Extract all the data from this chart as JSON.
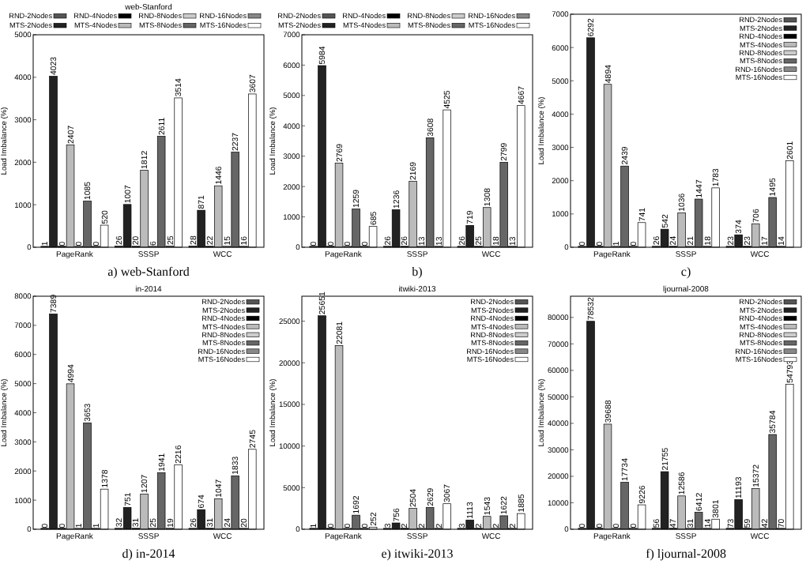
{
  "chart_data": [
    {
      "type": "bar",
      "title": "web-Stanford",
      "ylabel": "Load Imbalance (%)",
      "annotations": [
        "a) web-Stanford"
      ],
      "categories": [
        "PageRank",
        "SSSP",
        "WCC"
      ],
      "ylim": [
        0,
        5000
      ],
      "yticks": [
        0,
        1000,
        2000,
        3000,
        4000,
        5000
      ],
      "legend": "top",
      "data_labels": true,
      "series": [
        {
          "name": "RND-2Nodes",
          "color": "#555555",
          "values": [
            1,
            26,
            28
          ]
        },
        {
          "name": "MTS-2Nodes",
          "color": "#222222",
          "values": [
            4023,
            1007,
            871
          ]
        },
        {
          "name": "RND-4Nodes",
          "color": "#000000",
          "values": [
            0,
            20,
            22
          ]
        },
        {
          "name": "MTS-4Nodes",
          "color": "#bbbbbb",
          "values": [
            2407,
            1812,
            1446
          ]
        },
        {
          "name": "RND-8Nodes",
          "color": "#cccccc",
          "values": [
            0,
            6,
            15
          ]
        },
        {
          "name": "MTS-8Nodes",
          "color": "#666666",
          "values": [
            1085,
            2611,
            2237
          ]
        },
        {
          "name": "RND-16Nodes",
          "color": "#888888",
          "values": [
            0,
            25,
            16
          ]
        },
        {
          "name": "MTS-16Nodes",
          "color": "#ffffff",
          "values": [
            520,
            3514,
            3607
          ]
        }
      ]
    },
    {
      "type": "bar",
      "ylabel": "Load Imbalance (%)",
      "annotations": [
        "b)"
      ],
      "categories": [
        "PageRank",
        "SSSP",
        "WCC"
      ],
      "ylim": [
        0,
        7000
      ],
      "yticks": [
        0,
        1000,
        2000,
        3000,
        4000,
        5000,
        6000,
        7000
      ],
      "legend": "top",
      "data_labels": true,
      "series": [
        {
          "name": "RND-2Nodes",
          "color": "#555555",
          "values": [
            0,
            26,
            26
          ]
        },
        {
          "name": "MTS-2Nodes",
          "color": "#222222",
          "values": [
            5984,
            1236,
            719
          ]
        },
        {
          "name": "RND-4Nodes",
          "color": "#000000",
          "values": [
            0,
            26,
            25
          ]
        },
        {
          "name": "MTS-4Nodes",
          "color": "#bbbbbb",
          "values": [
            2769,
            2169,
            1308
          ]
        },
        {
          "name": "RND-8Nodes",
          "color": "#cccccc",
          "values": [
            0,
            13,
            18
          ]
        },
        {
          "name": "MTS-8Nodes",
          "color": "#666666",
          "values": [
            1259,
            3608,
            2799
          ]
        },
        {
          "name": "RND-16Nodes",
          "color": "#888888",
          "values": [
            0,
            13,
            13
          ]
        },
        {
          "name": "MTS-16Nodes",
          "color": "#ffffff",
          "values": [
            685,
            4525,
            4667
          ]
        }
      ]
    },
    {
      "type": "bar",
      "ylabel": "Load Imbalance (%)",
      "annotations": [
        "c)"
      ],
      "categories": [
        "PageRank",
        "SSSP",
        "WCC"
      ],
      "ylim": [
        0,
        7000
      ],
      "yticks": [
        0,
        1000,
        2000,
        3000,
        4000,
        5000,
        6000,
        7000
      ],
      "legend": "top right",
      "data_labels": true,
      "series": [
        {
          "name": "RND-2Nodes",
          "color": "#555555",
          "values": [
            0,
            26,
            23
          ]
        },
        {
          "name": "MTS-2Nodes",
          "color": "#222222",
          "values": [
            6292,
            542,
            374
          ]
        },
        {
          "name": "RND-4Nodes",
          "color": "#000000",
          "values": [
            0,
            24,
            23
          ]
        },
        {
          "name": "MTS-4Nodes",
          "color": "#bbbbbb",
          "values": [
            4894,
            1036,
            706
          ]
        },
        {
          "name": "RND-8Nodes",
          "color": "#cccccc",
          "values": [
            1,
            21,
            17
          ]
        },
        {
          "name": "MTS-8Nodes",
          "color": "#666666",
          "values": [
            2439,
            1447,
            1495
          ]
        },
        {
          "name": "RND-16Nodes",
          "color": "#888888",
          "values": [
            0,
            18,
            14
          ]
        },
        {
          "name": "MTS-16Nodes",
          "color": "#ffffff",
          "values": [
            741,
            1783,
            2601
          ]
        }
      ]
    },
    {
      "type": "bar",
      "title": "in-2014",
      "ylabel": "Load Imbalance (%)",
      "annotations": [
        "d) in-2014"
      ],
      "categories": [
        "PageRank",
        "SSSP",
        "WCC"
      ],
      "ylim": [
        0,
        8000
      ],
      "yticks": [
        0,
        1000,
        2000,
        3000,
        4000,
        5000,
        6000,
        7000,
        8000
      ],
      "legend": "top right",
      "data_labels": true,
      "series": [
        {
          "name": "RND-2Nodes",
          "color": "#555555",
          "values": [
            0,
            32,
            26
          ]
        },
        {
          "name": "MTS-2Nodes",
          "color": "#222222",
          "values": [
            7389,
            751,
            674
          ]
        },
        {
          "name": "RND-4Nodes",
          "color": "#000000",
          "values": [
            0,
            31,
            31
          ]
        },
        {
          "name": "MTS-4Nodes",
          "color": "#bbbbbb",
          "values": [
            4994,
            1207,
            1047
          ]
        },
        {
          "name": "RND-8Nodes",
          "color": "#cccccc",
          "values": [
            1,
            25,
            24
          ]
        },
        {
          "name": "MTS-8Nodes",
          "color": "#666666",
          "values": [
            3653,
            1941,
            1833
          ]
        },
        {
          "name": "RND-16Nodes",
          "color": "#888888",
          "values": [
            1,
            19,
            20
          ]
        },
        {
          "name": "MTS-16Nodes",
          "color": "#ffffff",
          "values": [
            1378,
            2216,
            2745
          ]
        }
      ]
    },
    {
      "type": "bar",
      "title": "itwiki-2013",
      "ylabel": "Load Imbalance (%)",
      "annotations": [
        "e) itwiki-2013"
      ],
      "categories": [
        "PageRank",
        "SSSP",
        "WCC"
      ],
      "ylim": [
        0,
        28000
      ],
      "yticks": [
        0,
        5000,
        10000,
        15000,
        20000,
        25000
      ],
      "legend": "top right",
      "data_labels": true,
      "series": [
        {
          "name": "RND-2Nodes",
          "color": "#555555",
          "values": [
            1,
            3,
            3
          ]
        },
        {
          "name": "MTS-2Nodes",
          "color": "#222222",
          "values": [
            25651,
            756,
            1113
          ]
        },
        {
          "name": "RND-4Nodes",
          "color": "#000000",
          "values": [
            0,
            2,
            2
          ]
        },
        {
          "name": "MTS-4Nodes",
          "color": "#bbbbbb",
          "values": [
            22081,
            2504,
            1543
          ]
        },
        {
          "name": "RND-8Nodes",
          "color": "#cccccc",
          "values": [
            0,
            2,
            2
          ]
        },
        {
          "name": "MTS-8Nodes",
          "color": "#666666",
          "values": [
            1692,
            2629,
            1622
          ]
        },
        {
          "name": "RND-16Nodes",
          "color": "#888888",
          "values": [
            0,
            2,
            2
          ]
        },
        {
          "name": "MTS-16Nodes",
          "color": "#ffffff",
          "values": [
            252,
            3067,
            1885
          ]
        }
      ]
    },
    {
      "type": "bar",
      "title": "ljournal-2008",
      "ylabel": "Load Imbalance (%)",
      "annotations": [
        "f) ljournal-2008"
      ],
      "categories": [
        "PageRank",
        "SSSP",
        "WCC"
      ],
      "ylim": [
        0,
        88000
      ],
      "yticks": [
        0,
        10000,
        20000,
        30000,
        40000,
        50000,
        60000,
        70000,
        80000
      ],
      "legend": "top right",
      "data_labels": true,
      "series": [
        {
          "name": "RND-2Nodes",
          "color": "#555555",
          "values": [
            0,
            56,
            73
          ]
        },
        {
          "name": "MTS-2Nodes",
          "color": "#222222",
          "values": [
            78532,
            21755,
            11193
          ]
        },
        {
          "name": "RND-4Nodes",
          "color": "#000000",
          "values": [
            0,
            47,
            59
          ]
        },
        {
          "name": "MTS-4Nodes",
          "color": "#bbbbbb",
          "values": [
            39688,
            12586,
            15372
          ]
        },
        {
          "name": "RND-8Nodes",
          "color": "#cccccc",
          "values": [
            0,
            31,
            42
          ]
        },
        {
          "name": "MTS-8Nodes",
          "color": "#666666",
          "values": [
            17734,
            6412,
            35784
          ]
        },
        {
          "name": "RND-16Nodes",
          "color": "#888888",
          "values": [
            0,
            14,
            70
          ]
        },
        {
          "name": "MTS-16Nodes",
          "color": "#ffffff",
          "values": [
            9226,
            3801,
            54793
          ]
        }
      ]
    }
  ]
}
